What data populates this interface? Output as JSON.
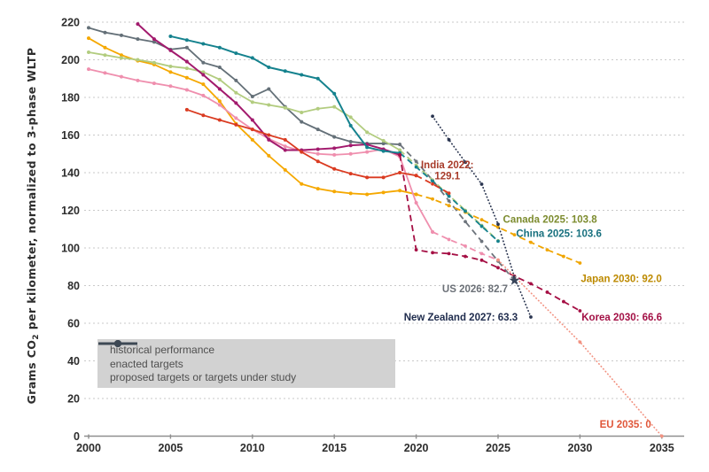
{
  "chart_data": {
    "type": "line",
    "title": "",
    "xlabel": "",
    "ylabel_parts": [
      "Grams CO",
      "2",
      " per kilometer, normalized to 3-phase WLTP"
    ],
    "xlim": [
      2000,
      2035
    ],
    "ylim": [
      0,
      220
    ],
    "xticks": [
      2000,
      2005,
      2010,
      2015,
      2020,
      2025,
      2030,
      2035
    ],
    "yticks": [
      0,
      20,
      40,
      60,
      80,
      100,
      120,
      140,
      160,
      180,
      200,
      220
    ],
    "grid": "horizontal dashed",
    "legend": {
      "position": "lower-left",
      "items": [
        {
          "style": "solid",
          "label": "historical performance"
        },
        {
          "style": "dashed",
          "label": "enacted targets"
        },
        {
          "style": "dotted",
          "label": "proposed targets or targets under study"
        }
      ]
    },
    "series": [
      {
        "id": "us-historical",
        "country": "United States",
        "kind": "historical",
        "style": "solid",
        "color": "#647078",
        "points": [
          [
            2000,
            217
          ],
          [
            2001,
            214.5
          ],
          [
            2002,
            213
          ],
          [
            2003,
            211
          ],
          [
            2004,
            209.5
          ],
          [
            2005,
            205.5
          ],
          [
            2006,
            206.5
          ],
          [
            2007,
            198.5
          ],
          [
            2008,
            196
          ],
          [
            2009,
            189
          ],
          [
            2010,
            180.5
          ],
          [
            2011,
            184.5
          ],
          [
            2012,
            175
          ],
          [
            2013,
            167
          ],
          [
            2014,
            163
          ],
          [
            2015,
            159
          ],
          [
            2016,
            156.5
          ],
          [
            2017,
            155.5
          ],
          [
            2018,
            155.5
          ],
          [
            2019,
            155
          ]
        ]
      },
      {
        "id": "japan-historical",
        "country": "Japan",
        "kind": "historical",
        "style": "solid",
        "color": "#f5a800",
        "points": [
          [
            2000,
            211.5
          ],
          [
            2001,
            206.5
          ],
          [
            2002,
            202.5
          ],
          [
            2003,
            199.5
          ],
          [
            2004,
            197.5
          ],
          [
            2005,
            193.5
          ],
          [
            2006,
            190.5
          ],
          [
            2007,
            187
          ],
          [
            2008,
            178
          ],
          [
            2009,
            166
          ],
          [
            2010,
            157.5
          ],
          [
            2011,
            149
          ],
          [
            2012,
            141.5
          ],
          [
            2013,
            134
          ],
          [
            2014,
            131.5
          ],
          [
            2015,
            130
          ],
          [
            2016,
            129
          ],
          [
            2017,
            128.5
          ],
          [
            2018,
            129.5
          ],
          [
            2019,
            130.5
          ],
          [
            2020,
            128.5
          ]
        ]
      },
      {
        "id": "canada-historical",
        "country": "Canada",
        "kind": "historical",
        "style": "solid",
        "color": "#b2cc7f",
        "points": [
          [
            2000,
            204
          ],
          [
            2001,
            202.5
          ],
          [
            2002,
            201
          ],
          [
            2003,
            200
          ],
          [
            2004,
            198.5
          ],
          [
            2005,
            196.5
          ],
          [
            2006,
            195.5
          ],
          [
            2007,
            193.5
          ],
          [
            2008,
            189.5
          ],
          [
            2009,
            182.5
          ],
          [
            2010,
            177.5
          ],
          [
            2011,
            176
          ],
          [
            2012,
            174.5
          ],
          [
            2013,
            172
          ],
          [
            2014,
            174
          ],
          [
            2015,
            175
          ],
          [
            2016,
            169.5
          ],
          [
            2017,
            161.5
          ],
          [
            2018,
            157
          ],
          [
            2019,
            152
          ]
        ]
      },
      {
        "id": "eu-historical",
        "country": "European Union",
        "kind": "historical",
        "style": "solid",
        "color": "#ef8fae",
        "points": [
          [
            2000,
            195
          ],
          [
            2001,
            193
          ],
          [
            2002,
            191
          ],
          [
            2003,
            189
          ],
          [
            2004,
            187.5
          ],
          [
            2005,
            186
          ],
          [
            2006,
            184
          ],
          [
            2007,
            181
          ],
          [
            2008,
            176
          ],
          [
            2009,
            169
          ],
          [
            2010,
            163
          ],
          [
            2011,
            158
          ],
          [
            2012,
            154
          ],
          [
            2013,
            151.5
          ],
          [
            2014,
            150
          ],
          [
            2015,
            149.5
          ],
          [
            2016,
            150
          ],
          [
            2017,
            151
          ],
          [
            2018,
            152.5
          ],
          [
            2019,
            148.5
          ],
          [
            2020,
            124
          ],
          [
            2021,
            108.5
          ]
        ]
      },
      {
        "id": "korea-historical",
        "country": "South Korea",
        "kind": "historical",
        "style": "solid",
        "color": "#a21a6d",
        "width": 2,
        "points": [
          [
            2003,
            219
          ],
          [
            2004,
            211
          ],
          [
            2005,
            205
          ],
          [
            2006,
            199
          ],
          [
            2007,
            192
          ],
          [
            2008,
            184.5
          ],
          [
            2009,
            177
          ],
          [
            2010,
            168
          ],
          [
            2011,
            157.5
          ],
          [
            2012,
            152
          ],
          [
            2013,
            152
          ],
          [
            2014,
            152.5
          ],
          [
            2015,
            153
          ],
          [
            2016,
            154.5
          ],
          [
            2017,
            155
          ],
          [
            2018,
            152.5
          ],
          [
            2019,
            149.5
          ]
        ]
      },
      {
        "id": "china-historical",
        "country": "China",
        "kind": "historical",
        "style": "solid",
        "color": "#15828e",
        "width": 2,
        "points": [
          [
            2005,
            212.5
          ],
          [
            2006,
            210.5
          ],
          [
            2007,
            208.5
          ],
          [
            2008,
            206.5
          ],
          [
            2009,
            203.5
          ],
          [
            2010,
            201
          ],
          [
            2011,
            196
          ],
          [
            2012,
            194
          ],
          [
            2013,
            192
          ],
          [
            2014,
            190
          ],
          [
            2015,
            182
          ],
          [
            2016,
            165
          ],
          [
            2017,
            153.5
          ],
          [
            2018,
            151.5
          ],
          [
            2019,
            150.5
          ]
        ]
      },
      {
        "id": "india-historical",
        "country": "India",
        "kind": "historical",
        "style": "solid",
        "color": "#da3b21",
        "points": [
          [
            2006,
            173.5
          ],
          [
            2007,
            170.5
          ],
          [
            2008,
            168
          ],
          [
            2009,
            165.5
          ],
          [
            2010,
            163
          ],
          [
            2011,
            160
          ],
          [
            2012,
            157.5
          ],
          [
            2013,
            151
          ],
          [
            2014,
            146
          ],
          [
            2015,
            142
          ],
          [
            2016,
            139.5
          ],
          [
            2017,
            137.5
          ],
          [
            2018,
            137.5
          ],
          [
            2019,
            140
          ],
          [
            2020,
            138.5
          ]
        ]
      },
      {
        "id": "us-enacted",
        "country": "United States",
        "kind": "enacted",
        "style": "dashed",
        "color": "#6d747c",
        "points": [
          [
            2019,
            155
          ],
          [
            2020,
            146
          ],
          [
            2021,
            136
          ],
          [
            2022,
            125
          ],
          [
            2023,
            114
          ],
          [
            2024,
            103.5
          ],
          [
            2025,
            93
          ],
          [
            2026,
            82.7
          ]
        ]
      },
      {
        "id": "japan-enacted",
        "country": "Japan",
        "kind": "enacted",
        "style": "dashed",
        "color": "#f0a500",
        "points": [
          [
            2020,
            128.5
          ],
          [
            2021,
            126
          ],
          [
            2022,
            122.5
          ],
          [
            2023,
            119
          ],
          [
            2024,
            115
          ],
          [
            2025,
            111
          ],
          [
            2026,
            107
          ],
          [
            2027,
            103
          ],
          [
            2028,
            99
          ],
          [
            2029,
            95.5
          ],
          [
            2030,
            92
          ]
        ]
      },
      {
        "id": "canada-enacted",
        "country": "Canada",
        "kind": "enacted",
        "style": "dashed",
        "color": "#b2cc7f",
        "points": [
          [
            2019,
            152
          ],
          [
            2020,
            144
          ],
          [
            2021,
            136
          ],
          [
            2022,
            128
          ],
          [
            2023,
            120
          ],
          [
            2024,
            112
          ],
          [
            2025,
            103.8
          ]
        ]
      },
      {
        "id": "china-enacted",
        "country": "China",
        "kind": "enacted",
        "style": "dashed",
        "color": "#15828e",
        "points": [
          [
            2019,
            150.5
          ],
          [
            2020,
            143
          ],
          [
            2021,
            135.5
          ],
          [
            2022,
            127.5
          ],
          [
            2023,
            119.5
          ],
          [
            2024,
            111.5
          ],
          [
            2025,
            103.6
          ]
        ]
      },
      {
        "id": "eu-enacted",
        "country": "European Union",
        "kind": "enacted",
        "style": "dashed",
        "color": "#ef8fae",
        "points": [
          [
            2021,
            108.5
          ],
          [
            2022,
            104.5
          ],
          [
            2023,
            101
          ],
          [
            2024,
            97
          ],
          [
            2025,
            93.6
          ]
        ]
      },
      {
        "id": "korea-enacted",
        "country": "South Korea",
        "kind": "enacted",
        "style": "dashed",
        "color": "#a50f44",
        "points": [
          [
            2019,
            149.5
          ],
          [
            2020,
            99
          ],
          [
            2021,
            97.5
          ],
          [
            2022,
            97
          ],
          [
            2023,
            95.5
          ],
          [
            2024,
            93.5
          ],
          [
            2025,
            89.5
          ],
          [
            2026,
            85
          ],
          [
            2027,
            81
          ],
          [
            2028,
            76.5
          ],
          [
            2029,
            71.5
          ],
          [
            2030,
            66.6
          ]
        ]
      },
      {
        "id": "india-enacted",
        "country": "India",
        "kind": "enacted",
        "style": "dashed",
        "color": "#da3b21",
        "points": [
          [
            2020,
            138.5
          ],
          [
            2021,
            134
          ],
          [
            2022,
            129.1
          ]
        ]
      },
      {
        "id": "new-zealand-proposed",
        "country": "New Zealand",
        "kind": "proposed",
        "style": "dotted",
        "color": "#2a3550",
        "points": [
          [
            2021,
            170
          ],
          [
            2022,
            157.5
          ],
          [
            2023,
            145.6
          ],
          [
            2024,
            133.9
          ],
          [
            2025,
            112.6
          ],
          [
            2026,
            84.5
          ],
          [
            2027,
            63.3
          ]
        ]
      },
      {
        "id": "eu-proposed",
        "country": "European Union",
        "kind": "proposed",
        "style": "dotted",
        "color": "#f29382",
        "points": [
          [
            2025,
            93.6
          ],
          [
            2030,
            50
          ],
          [
            2035,
            0
          ]
        ]
      }
    ],
    "annotations": [
      {
        "id": "india",
        "lines": [
          "India 2022:",
          "129.1"
        ],
        "color": "#a73b2a",
        "x": 2021.9,
        "y": 142.4,
        "anchor": "middle"
      },
      {
        "id": "canada",
        "lines": [
          "Canada 2025: 103.8"
        ],
        "color": "#7d8c2f",
        "x": 2025.3,
        "y": 113.5,
        "anchor": "start"
      },
      {
        "id": "china",
        "lines": [
          "China 2025: 103.6"
        ],
        "color": "#17707e",
        "x": 2026.1,
        "y": 106,
        "anchor": "start"
      },
      {
        "id": "us",
        "lines": [
          "US 2026: 82.7"
        ],
        "color": "#6b7077",
        "x": 2025.6,
        "y": 76.5,
        "anchor": "end"
      },
      {
        "id": "japan",
        "lines": [
          "Japan 2030: 92.0"
        ],
        "color": "#bd8a00",
        "x": 2030.05,
        "y": 82,
        "anchor": "start"
      },
      {
        "id": "new-zealand",
        "lines": [
          "New Zealand 2027: 63.3"
        ],
        "color": "#202d4e",
        "x": 2026.2,
        "y": 61.5,
        "anchor": "end"
      },
      {
        "id": "korea",
        "lines": [
          "Korea 2030: 66.6"
        ],
        "color": "#a31045",
        "x": 2030.1,
        "y": 61.5,
        "anchor": "start"
      },
      {
        "id": "eu",
        "lines": [
          "EU 2035: 0"
        ],
        "color": "#e0573a",
        "x": 2031.2,
        "y": 4.5,
        "anchor": "start"
      }
    ],
    "star_marker": {
      "x": 2026,
      "y": 82.7,
      "color": "#39455a"
    }
  }
}
